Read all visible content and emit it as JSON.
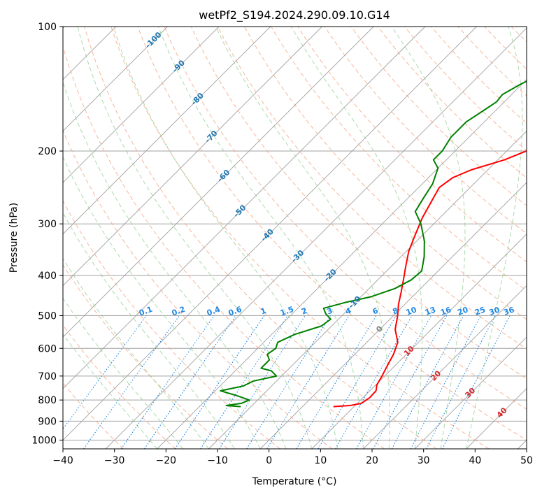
{
  "chart_data": {
    "type": "skew-t",
    "title": "wetPf2_S194.2024.290.09.10.G14",
    "xlabel": "Temperature (°C)",
    "ylabel": "Pressure (hPa)",
    "xlim": [
      -40,
      50
    ],
    "ylim": [
      1050,
      100
    ],
    "y_scale": "log",
    "grid": true,
    "x_ticks": [
      -40,
      -30,
      -20,
      -10,
      0,
      10,
      20,
      30,
      40,
      50
    ],
    "y_ticks": [
      100,
      200,
      300,
      400,
      500,
      600,
      700,
      800,
      900,
      1000
    ],
    "dry_adiabat_labels": [
      -100,
      -90,
      -80,
      -70,
      -60,
      -50,
      -40,
      -30,
      -20,
      -10,
      0,
      10,
      20,
      30,
      40
    ],
    "mixing_ratio_labels": [
      0.1,
      0.2,
      0.4,
      0.6,
      1,
      1.5,
      2,
      3,
      4,
      6,
      8,
      10,
      13,
      16,
      20,
      25,
      30,
      36
    ],
    "colors": {
      "temperature": "#ff0000",
      "dewpoint": "#008000",
      "isotherms": "#a0a0a0",
      "dry_adiabats": "#f4a582",
      "moist_adiabats": "#8fce8f",
      "mixing_ratio": "#1e88e5",
      "dry_adiabat_label": "#1f77b4",
      "warm_label": "#d62728"
    },
    "series": [
      {
        "role": "temperature",
        "points": [
          [
            6,
            830
          ],
          [
            9,
            825
          ],
          [
            10.8,
            815
          ],
          [
            11.3,
            790
          ],
          [
            11.2,
            760
          ],
          [
            10.2,
            735
          ],
          [
            9.5,
            700
          ],
          [
            8.5,
            660
          ],
          [
            7.5,
            620
          ],
          [
            6,
            580
          ],
          [
            3,
            540
          ],
          [
            0.8,
            500
          ],
          [
            -1.2,
            470
          ],
          [
            -3,
            440
          ],
          [
            -5,
            410
          ],
          [
            -7.2,
            380
          ],
          [
            -9.5,
            350
          ],
          [
            -11.4,
            320
          ],
          [
            -13.4,
            290
          ],
          [
            -14.8,
            265
          ],
          [
            -16,
            245
          ],
          [
            -15.3,
            232
          ],
          [
            -13.2,
            222
          ],
          [
            -8.7,
            210
          ],
          [
            -6.2,
            200
          ],
          [
            -4.5,
            188
          ],
          [
            -2.2,
            175
          ],
          [
            1.3,
            160
          ],
          [
            4.7,
            145
          ],
          [
            7.1,
            132
          ],
          [
            7.9,
            122
          ],
          [
            9.2,
            113
          ],
          [
            10.2,
            106
          ],
          [
            11,
            100
          ]
        ]
      },
      {
        "role": "dewpoint",
        "points": [
          [
            -12,
            830
          ],
          [
            -15,
            825
          ],
          [
            -12.5,
            815
          ],
          [
            -11.6,
            800
          ],
          [
            -15,
            780
          ],
          [
            -19,
            760
          ],
          [
            -15.5,
            740
          ],
          [
            -14.5,
            720
          ],
          [
            -11,
            700
          ],
          [
            -13,
            680
          ],
          [
            -15.5,
            670
          ],
          [
            -15.5,
            640
          ],
          [
            -17,
            620
          ],
          [
            -16.5,
            600
          ],
          [
            -17.3,
            580
          ],
          [
            -15.5,
            555
          ],
          [
            -12,
            530
          ],
          [
            -11.5,
            510
          ],
          [
            -13.5,
            495
          ],
          [
            -15,
            480
          ],
          [
            -12,
            465
          ],
          [
            -8,
            450
          ],
          [
            -5,
            430
          ],
          [
            -3.5,
            410
          ],
          [
            -3.2,
            390
          ],
          [
            -5.5,
            360
          ],
          [
            -8.5,
            330
          ],
          [
            -12.5,
            300
          ],
          [
            -16,
            280
          ],
          [
            -17,
            260
          ],
          [
            -18,
            240
          ],
          [
            -20,
            220
          ],
          [
            -22.5,
            210
          ],
          [
            -22.5,
            200
          ],
          [
            -23.5,
            185
          ],
          [
            -23.5,
            170
          ],
          [
            -22.4,
            160
          ],
          [
            -21.5,
            152
          ],
          [
            -21.8,
            146
          ],
          [
            -20.3,
            138
          ],
          [
            -17.6,
            128
          ],
          [
            -16.4,
            120
          ],
          [
            -15.5,
            114
          ],
          [
            -14.4,
            108
          ],
          [
            -13.5,
            103
          ],
          [
            -12.8,
            100
          ]
        ]
      }
    ]
  }
}
